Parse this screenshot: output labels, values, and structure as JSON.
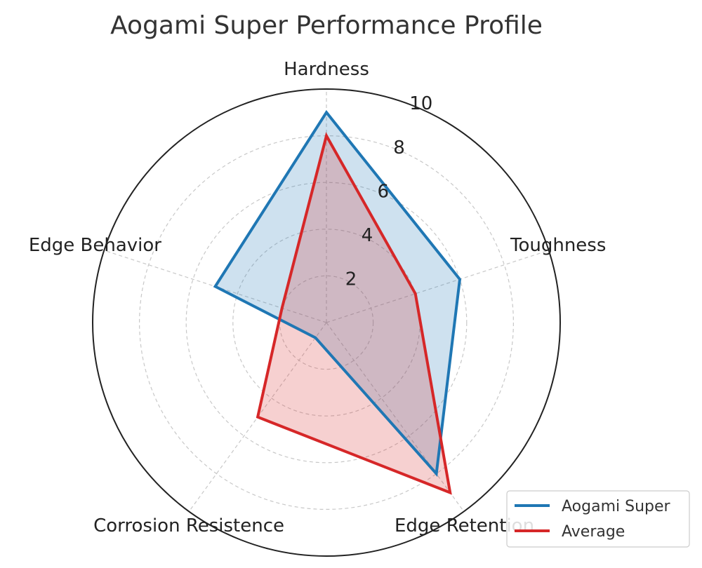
{
  "chart_data": {
    "type": "radar",
    "title": "Aogami Super Performance Profile",
    "categories": [
      "Hardness",
      "Toughness",
      "Edge Retention",
      "Corrosion Resistence",
      "Edge Behavior"
    ],
    "rlim": [
      0,
      10
    ],
    "rticks": [
      2,
      4,
      6,
      8,
      10
    ],
    "grid": true,
    "legend_position": "bottom-right",
    "series": [
      {
        "name": "Aogami Super",
        "values": [
          9.0,
          6.0,
          8.0,
          0.8,
          5.0
        ],
        "color": "#1f77b4"
      },
      {
        "name": "Average",
        "values": [
          8.0,
          4.0,
          9.0,
          5.0,
          2.0
        ],
        "color": "#d62728"
      }
    ]
  }
}
